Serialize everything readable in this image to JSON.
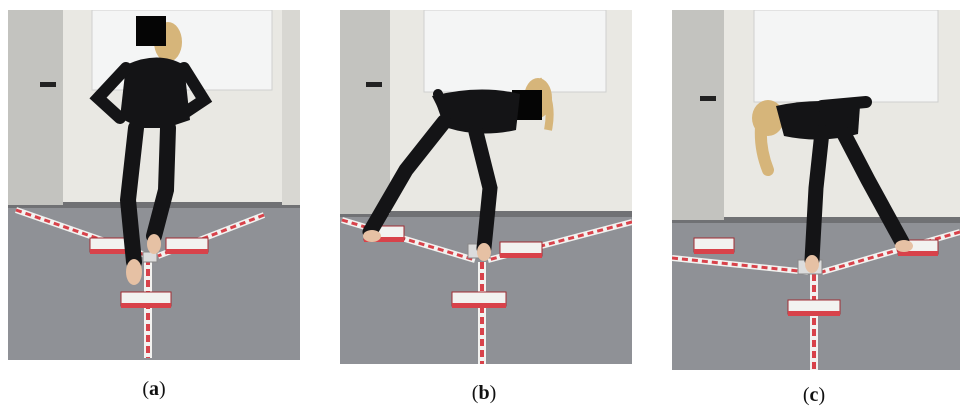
{
  "figure": {
    "panels": [
      {
        "id": "a",
        "caption_open": "(",
        "caption_letter": "a",
        "caption_close": ")",
        "pose": "standing-forward-reach",
        "reach_direction": "anterior"
      },
      {
        "id": "b",
        "caption_open": "(",
        "caption_letter": "b",
        "caption_close": ")",
        "pose": "posteromedial-reach",
        "reach_direction": "posteromedial"
      },
      {
        "id": "c",
        "caption_open": "(",
        "caption_letter": "c",
        "caption_close": ")",
        "pose": "posterolateral-reach",
        "reach_direction": "posterolateral"
      }
    ],
    "colors": {
      "wall": "#e9e8e3",
      "floor": "#8f9196",
      "clothing": "#141416",
      "hair": "#d6b57a",
      "skin": "#e6c1a4",
      "pipe_red": "#d8424a",
      "pipe_white": "#f2f2f0",
      "door": "#b5b5b0",
      "whiteboard": "#f4f5f5",
      "censor_box": "#050505"
    }
  }
}
